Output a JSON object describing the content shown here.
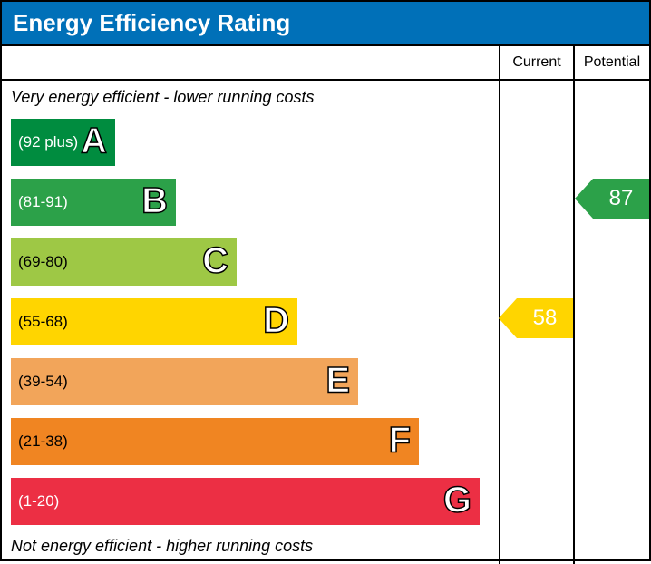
{
  "title": "Energy Efficiency Rating",
  "title_bg": "#0070b8",
  "columns": {
    "current": "Current",
    "potential": "Potential"
  },
  "note_top": "Very energy efficient - lower running costs",
  "note_bottom": "Not energy efficient - higher running costs",
  "bar_base_width": 115,
  "bar_step_width": 67,
  "bands": [
    {
      "letter": "A",
      "range": "(92 plus)",
      "color": "#008c3f",
      "textColor": "#ffffff"
    },
    {
      "letter": "B",
      "range": "(81-91)",
      "color": "#2ca149",
      "textColor": "#ffffff"
    },
    {
      "letter": "C",
      "range": "(69-80)",
      "color": "#9ec845",
      "textColor": "#000000"
    },
    {
      "letter": "D",
      "range": "(55-68)",
      "color": "#ffd500",
      "textColor": "#000000"
    },
    {
      "letter": "E",
      "range": "(39-54)",
      "color": "#f2a55a",
      "textColor": "#000000"
    },
    {
      "letter": "F",
      "range": "(21-38)",
      "color": "#f08522",
      "textColor": "#000000"
    },
    {
      "letter": "G",
      "range": "(1-20)",
      "color": "#ec2f44",
      "textColor": "#ffffff"
    }
  ],
  "current": {
    "value": 58,
    "band": "D",
    "color": "#ffd500",
    "valueColor": "#ffffff"
  },
  "potential": {
    "value": 87,
    "band": "B",
    "color": "#2ca149",
    "valueColor": "#ffffff"
  }
}
